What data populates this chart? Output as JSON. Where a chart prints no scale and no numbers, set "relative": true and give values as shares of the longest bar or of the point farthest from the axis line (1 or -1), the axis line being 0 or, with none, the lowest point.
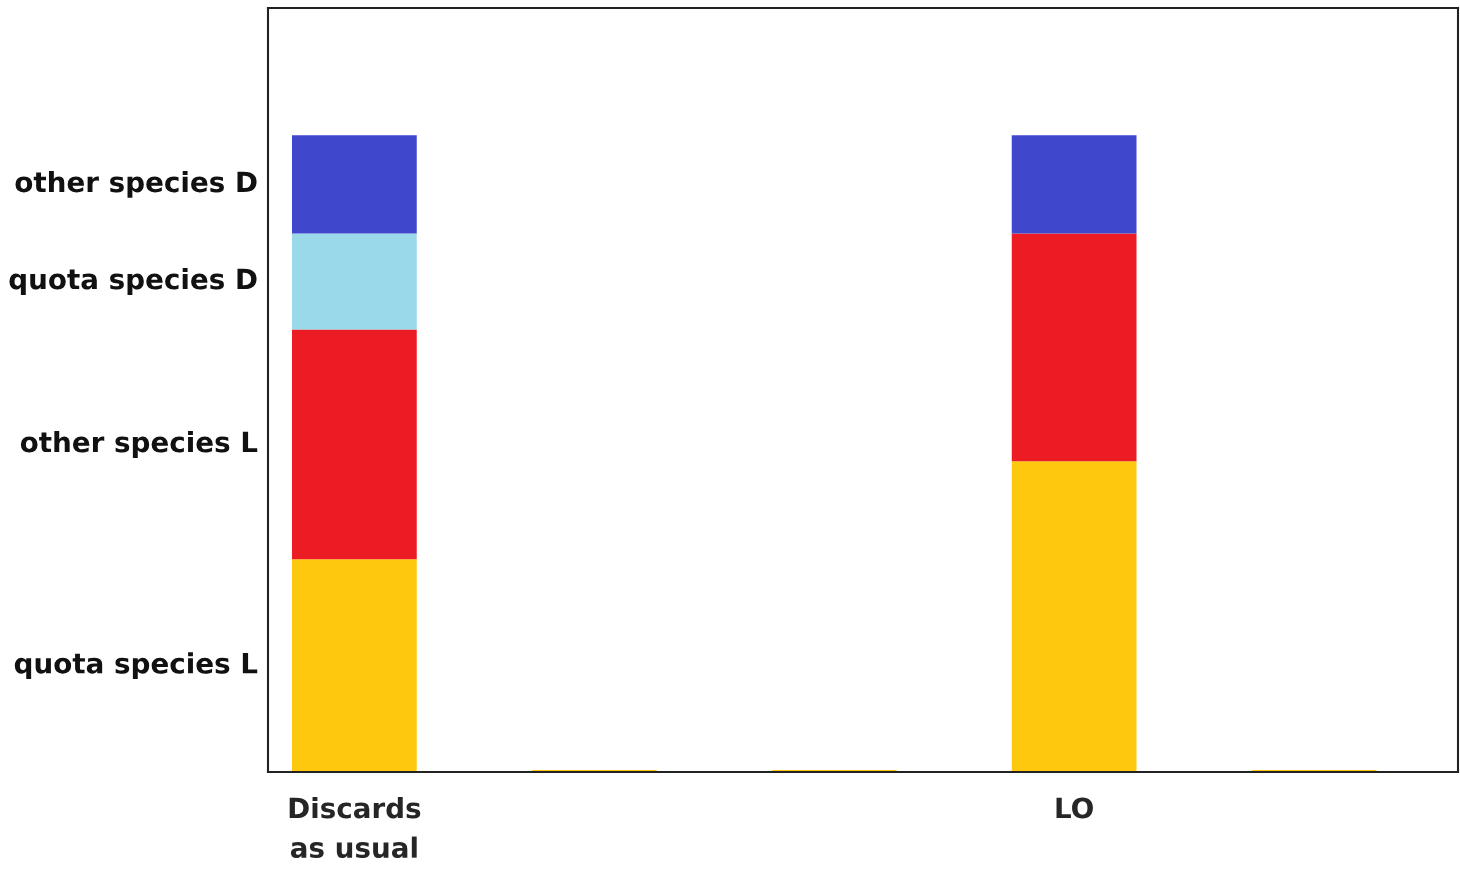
{
  "chart_data": {
    "type": "bar",
    "stacked": true,
    "relative": true,
    "legend": false,
    "grid": false,
    "categories": [
      "Discards\nas usual",
      null,
      null,
      "LO",
      null
    ],
    "series": [
      {
        "name": "quota species L",
        "color": "#fec80e",
        "values": [
          0.334,
          0.003,
          0.003,
          0.488,
          0.003
        ]
      },
      {
        "name": "other species L",
        "color": "#ec1c24",
        "values": [
          0.361,
          0,
          0,
          0.358,
          0
        ]
      },
      {
        "name": "quota species D",
        "color": "#99d9ea",
        "values": [
          0.151,
          0,
          0,
          0,
          0
        ]
      },
      {
        "name": "other species D",
        "color": "#3f48cc",
        "values": [
          0.154,
          0,
          0,
          0.154,
          0
        ]
      }
    ]
  }
}
